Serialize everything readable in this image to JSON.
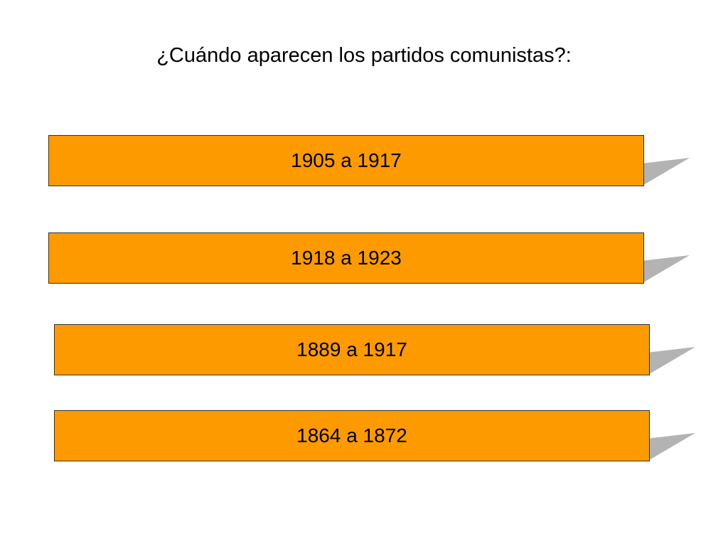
{
  "slide": {
    "question": "¿Cuándo aparecen los partidos comunistas?:"
  },
  "options": [
    {
      "label": "1905 a 1917"
    },
    {
      "label": "1918 a 1923"
    },
    {
      "label": "1889 a 1917"
    },
    {
      "label": "1864 a 1872"
    }
  ],
  "colors": {
    "option_fill": "#fd9a00",
    "option_border": "#333333",
    "shadow": "#b3b3b3",
    "background": "#ffffff"
  }
}
